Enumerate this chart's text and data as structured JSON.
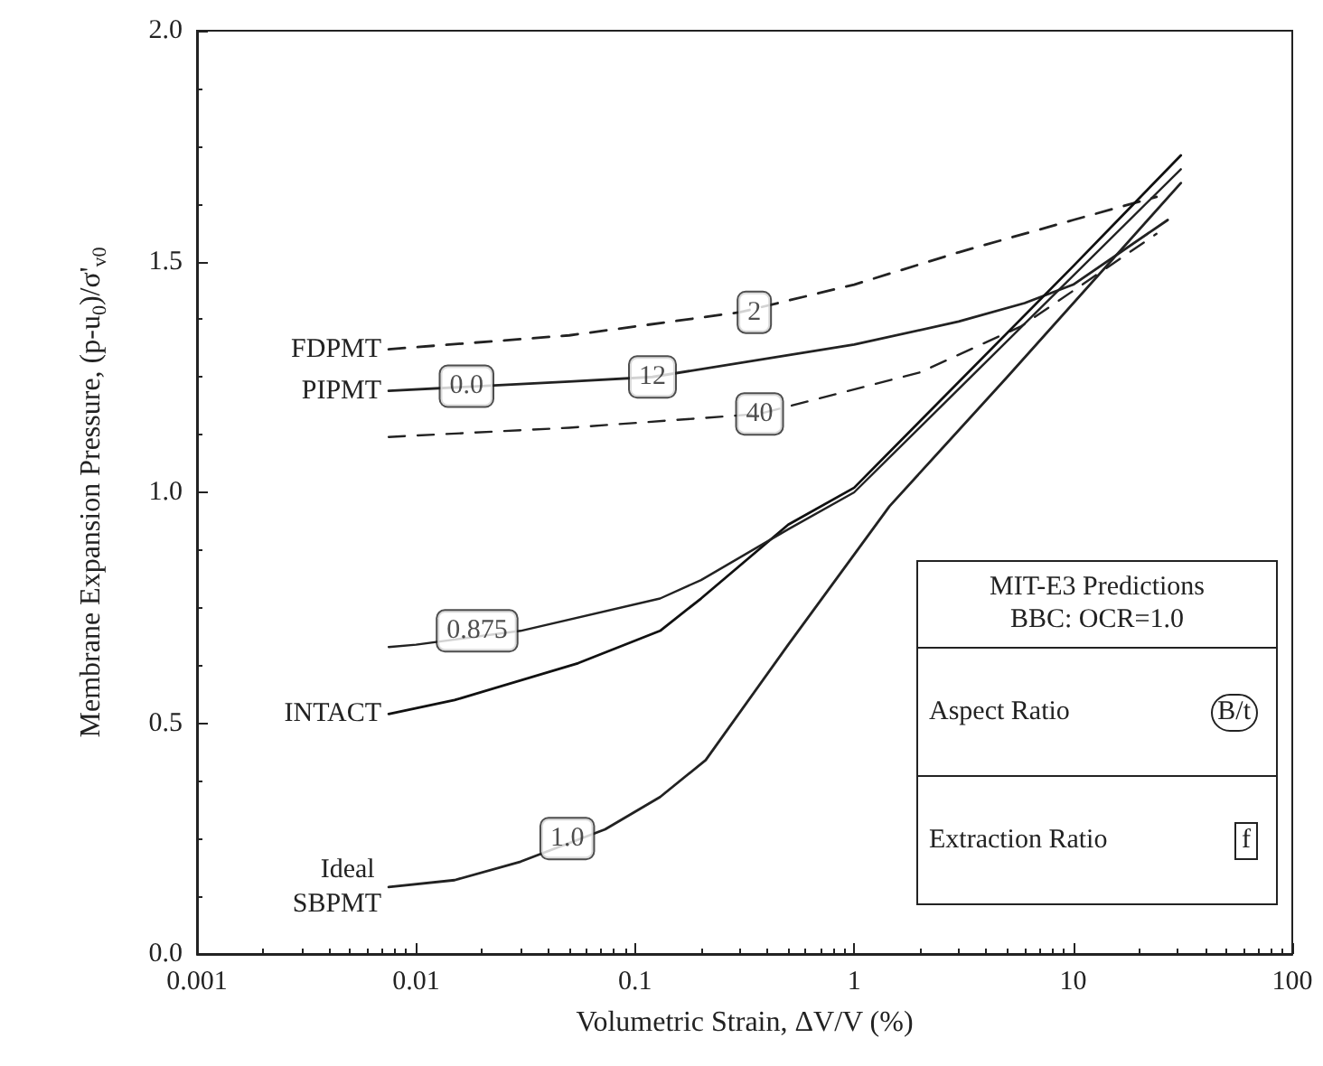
{
  "chart_data": {
    "type": "line",
    "xlabel": "Volumetric Strain, ΔV/V (%)",
    "ylabel": "Membrane Expansion Pressure, (p-u$_{0}$)/σ'$_{v0}$",
    "log": "x",
    "grid": false,
    "marker": "none",
    "xlim": [
      0.001,
      100
    ],
    "xticks": [
      0.001,
      0.01,
      0.1,
      1,
      10,
      100
    ],
    "ylim": [
      0,
      2
    ],
    "yticks": [
      {
        "value": 0,
        "label": "0.0"
      },
      {
        "value": 0.5,
        "label": "0.5"
      },
      {
        "value": 1,
        "label": "1.0"
      },
      {
        "value": 1.5,
        "label": "1.5"
      },
      {
        "value": 2,
        "label": "2.0"
      }
    ],
    "series": [
      {
        "name": "FDPMT",
        "color": "#222222",
        "line_style": "dashed",
        "x": [
          0.0075,
          0.05,
          0.3,
          1,
          3,
          10,
          24
        ],
        "values": [
          1.31,
          1.34,
          1.39,
          1.45,
          1.52,
          1.59,
          1.64
        ]
      },
      {
        "name": "PIPMT",
        "color": "#222222",
        "line_style": "solid",
        "x": [
          0.0075,
          0.05,
          0.12,
          1,
          3,
          6,
          10,
          27
        ],
        "values": [
          1.22,
          1.24,
          1.25,
          1.32,
          1.37,
          1.41,
          1.45,
          1.59
        ]
      },
      {
        "color": "#222222",
        "line_style": "dashed",
        "x": [
          0.0075,
          0.05,
          0.37,
          2,
          5.8,
          24
        ],
        "values": [
          1.12,
          1.14,
          1.17,
          1.26,
          1.36,
          1.56
        ]
      },
      {
        "name": "INTACT",
        "color": "#111111",
        "line_style": "solid",
        "x": [
          0.0075,
          0.015,
          0.055,
          0.13,
          0.2,
          0.5,
          1,
          10,
          31
        ],
        "values": [
          0.52,
          0.55,
          0.63,
          0.7,
          0.77,
          0.93,
          1.01,
          1.49,
          1.73
        ]
      },
      {
        "color": "#222222",
        "line_style": "solid",
        "x": [
          0.0075,
          0.01,
          0.03,
          0.13,
          0.2,
          0.5,
          1,
          31
        ],
        "values": [
          0.665,
          0.67,
          0.7,
          0.77,
          0.81,
          0.92,
          1.0,
          1.7
        ]
      },
      {
        "name": "Ideal SBPMT",
        "color": "#222222",
        "line_style": "solid",
        "x": [
          0.0075,
          0.015,
          0.03,
          0.073,
          0.13,
          0.21,
          0.5,
          1.45,
          5,
          31
        ],
        "values": [
          0.145,
          0.16,
          0.2,
          0.27,
          0.34,
          0.42,
          0.67,
          0.97,
          1.25,
          1.67
        ]
      }
    ],
    "annotations": [
      {
        "text": "2",
        "x": 0.35,
        "y": 1.39
      },
      {
        "text": "12",
        "x": 0.12,
        "y": 1.25
      },
      {
        "text": "40",
        "x": 0.37,
        "y": 1.17
      },
      {
        "text": "0.0",
        "x": 0.017,
        "y": 1.23
      },
      {
        "text": "0.875",
        "x": 0.019,
        "y": 0.7
      },
      {
        "text": "1.0",
        "x": 0.049,
        "y": 0.25
      },
      "MIT-E3 Predictions",
      "BBC: OCR=1.0",
      "Aspect Ratio",
      "B/t",
      "Extraction Ratio",
      "f"
    ]
  }
}
